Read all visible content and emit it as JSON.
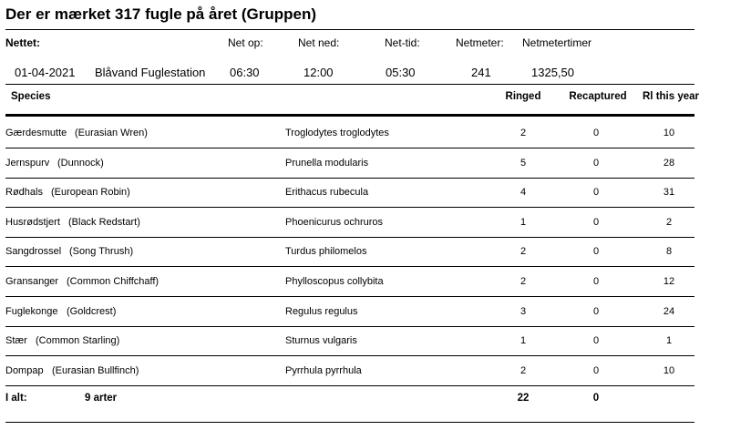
{
  "report": {
    "title": "Der er mærket 317 fugle på året (Gruppen)"
  },
  "net": {
    "section_label": "Nettet:",
    "headers": {
      "net_op": "Net op:",
      "net_ned": "Net ned:",
      "net_tid": "Net-tid:",
      "netmeter": "Netmeter:",
      "netmetertimer": "Netmetertimer"
    },
    "values": {
      "date": "01-04-2021",
      "station": "Blåvand Fuglestation",
      "net_op": "06:30",
      "net_ned": "12:00",
      "net_tid": "05:30",
      "netmeter": "241",
      "netmetertimer": "1325,50"
    }
  },
  "table": {
    "columns": {
      "species": "Species",
      "ringed": "Ringed",
      "recaptured": "Recaptured",
      "ri_this_year": "Rl this year"
    },
    "rows": [
      {
        "danish": "Gærdesmutte",
        "english": "(Eurasian Wren)",
        "latin": "Troglodytes troglodytes",
        "ringed": "2",
        "recaptured": "0",
        "ri": "10"
      },
      {
        "danish": "Jernspurv",
        "english": "(Dunnock)",
        "latin": "Prunella modularis",
        "ringed": "5",
        "recaptured": "0",
        "ri": "28"
      },
      {
        "danish": "Rødhals",
        "english": "(European Robin)",
        "latin": "Erithacus rubecula",
        "ringed": "4",
        "recaptured": "0",
        "ri": "31"
      },
      {
        "danish": "Husrødstjert",
        "english": "(Black Redstart)",
        "latin": "Phoenicurus ochruros",
        "ringed": "1",
        "recaptured": "0",
        "ri": "2"
      },
      {
        "danish": "Sangdrossel",
        "english": "(Song Thrush)",
        "latin": "Turdus philomelos",
        "ringed": "2",
        "recaptured": "0",
        "ri": "8"
      },
      {
        "danish": "Gransanger",
        "english": "(Common Chiffchaff)",
        "latin": "Phylloscopus collybita",
        "ringed": "2",
        "recaptured": "0",
        "ri": "12"
      },
      {
        "danish": "Fuglekonge",
        "english": "(Goldcrest)",
        "latin": "Regulus regulus",
        "ringed": "3",
        "recaptured": "0",
        "ri": "24"
      },
      {
        "danish": "Stær",
        "english": "(Common Starling)",
        "latin": "Sturnus vulgaris",
        "ringed": "1",
        "recaptured": "0",
        "ri": "1"
      },
      {
        "danish": "Dompap",
        "english": "(Eurasian Bullfinch)",
        "latin": "Pyrrhula pyrrhula",
        "ringed": "2",
        "recaptured": "0",
        "ri": "10"
      }
    ],
    "totals": {
      "label": "I alt:",
      "arter": "9 arter",
      "ringed": "22",
      "recaptured": "0"
    }
  }
}
